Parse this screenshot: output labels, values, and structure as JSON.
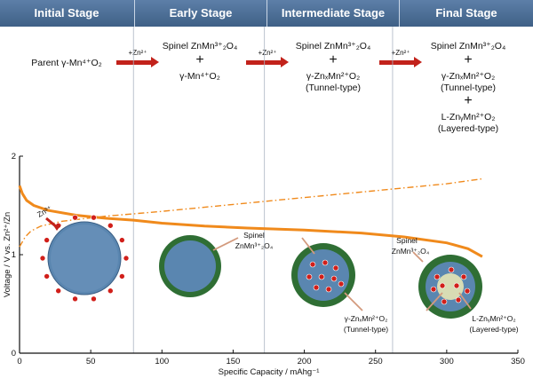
{
  "stages": [
    {
      "title": "Initial Stage"
    },
    {
      "title": "Early Stage"
    },
    {
      "title": "Intermediate Stage"
    },
    {
      "title": "Final Stage"
    }
  ],
  "reactions": {
    "initial": "Parent γ-Mn⁴⁺O₂",
    "arrow_label": "+Zn²⁺",
    "early_line1": "Spinel  ZnMn³⁺₂O₄",
    "early_line2": "γ-Mn⁴⁺O₂",
    "inter_line1": "Spinel  ZnMn³⁺₂O₄",
    "inter_line2": "γ-ZnₓMn²⁺O₂",
    "inter_line3": "(Tunnel-type)",
    "final_line1": "Spinel  ZnMn³⁺₂O₄",
    "final_line2": "γ-ZnₓMn²⁺O₂",
    "final_line3": "(Tunnel-type)",
    "final_line4": "L-ZnᵧMn²⁺O₂",
    "final_line5": "(Layered-type)",
    "plus": "+"
  },
  "chart_data": {
    "type": "line",
    "xlabel": "Specific Capacity  /  mAhg⁻¹",
    "ylabel": "Voltage / V vs. Zn²⁺/Zn",
    "xlim": [
      0,
      350
    ],
    "ylim": [
      0,
      2
    ],
    "x_ticks": [
      "0",
      "50",
      "100",
      "150",
      "200",
      "250",
      "300",
      "350"
    ],
    "y_ticks": [
      "0",
      "1",
      "2"
    ],
    "stage_boundaries_x": [
      80,
      172,
      262
    ],
    "series": [
      {
        "style": "solid",
        "color": "#f08a1c",
        "points": [
          [
            0,
            1.7
          ],
          [
            2,
            1.62
          ],
          [
            5,
            1.55
          ],
          [
            10,
            1.5
          ],
          [
            20,
            1.45
          ],
          [
            40,
            1.4
          ],
          [
            60,
            1.37
          ],
          [
            80,
            1.35
          ],
          [
            100,
            1.32
          ],
          [
            130,
            1.29
          ],
          [
            160,
            1.27
          ],
          [
            200,
            1.25
          ],
          [
            240,
            1.22
          ],
          [
            270,
            1.18
          ],
          [
            300,
            1.12
          ],
          [
            315,
            1.06
          ],
          [
            325,
            0.98
          ]
        ]
      },
      {
        "style": "dash-dot",
        "color": "#f08a1c",
        "points": [
          [
            0,
            1.08
          ],
          [
            4,
            1.18
          ],
          [
            8,
            1.24
          ],
          [
            15,
            1.29
          ],
          [
            30,
            1.34
          ],
          [
            60,
            1.39
          ],
          [
            100,
            1.44
          ],
          [
            150,
            1.51
          ],
          [
            200,
            1.58
          ],
          [
            250,
            1.65
          ],
          [
            300,
            1.72
          ],
          [
            325,
            1.77
          ]
        ]
      }
    ],
    "annotations": {
      "zn_label": "Zn²⁺",
      "spinel_label_a": "Spinel",
      "spinel_label_b": "ZnMn³⁺₂O₄",
      "spinel_label_c": "Spinel",
      "spinel_label_d": "ZnMn³⁺₂O₄",
      "tunnel_label_a": "γ-ZnₓMn²⁺O₂",
      "tunnel_label_b": "(Tunnel-type)",
      "layered_label_a": "L-ZnᵧMn²⁺O₂",
      "layered_label_b": "(Layered-type)"
    }
  },
  "colors": {
    "header": "#4a6b93",
    "arrow": "#c2221b",
    "curve": "#f08a1c",
    "particle_core": "#5a86b0",
    "particle_shell": "#2f6e34",
    "zn_ion": "#d11f1a"
  }
}
